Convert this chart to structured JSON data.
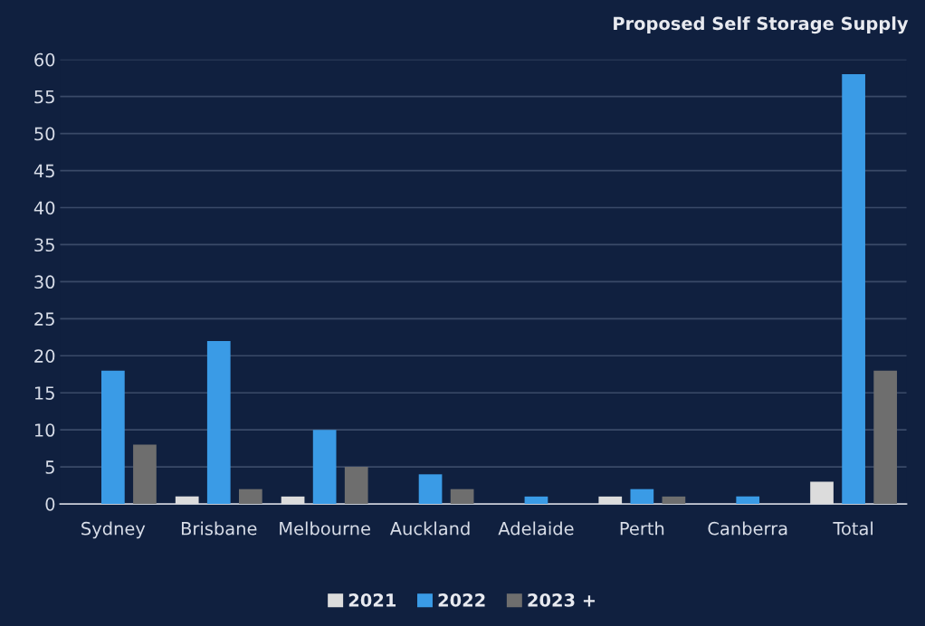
{
  "chart_data": {
    "type": "bar",
    "title": "Proposed Self Storage Supply",
    "categories": [
      "Sydney",
      "Brisbane",
      "Melbourne",
      "Auckland",
      "Adelaide",
      "Perth",
      "Canberra",
      "Total"
    ],
    "series": [
      {
        "name": "2021",
        "color": "#dcdcdc",
        "values": [
          0,
          1,
          1,
          0,
          0,
          1,
          0,
          3
        ]
      },
      {
        "name": "2022",
        "color": "#3a9be6",
        "values": [
          18,
          22,
          10,
          4,
          1,
          2,
          1,
          58
        ]
      },
      {
        "name": "2023 +",
        "color": "#6e6e6e",
        "values": [
          8,
          2,
          5,
          2,
          0,
          1,
          0,
          18
        ]
      }
    ],
    "ylim": [
      0,
      60
    ],
    "yticks": [
      0,
      5,
      10,
      15,
      20,
      25,
      30,
      35,
      40,
      45,
      50,
      55,
      60
    ],
    "grid": "y",
    "legend": "bottom"
  }
}
